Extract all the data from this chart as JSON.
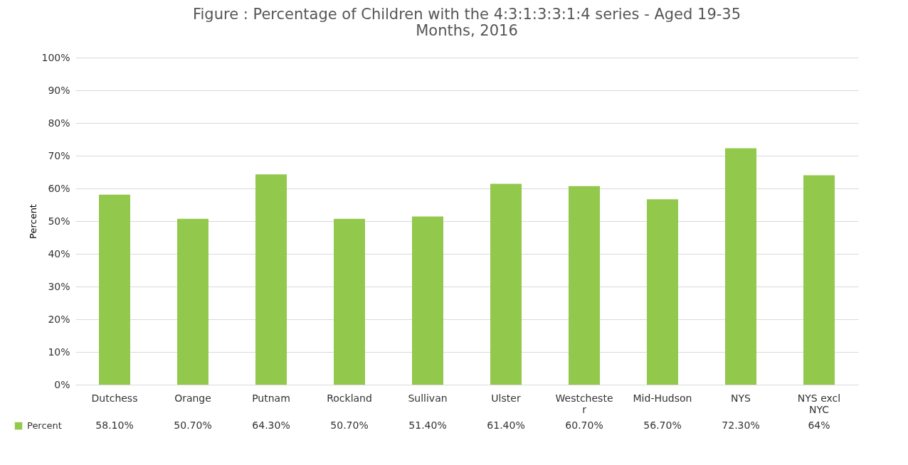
{
  "chart_data": {
    "type": "bar",
    "title": "Figure : Percentage of Children with the 4:3:1:3:3:1:4 series - Aged 19-35 Months, 2016",
    "ylabel": "Percent",
    "categories": [
      "Dutchess",
      "Orange",
      "Putnam",
      "Rockland",
      "Sullivan",
      "Ulster",
      "Westchester",
      "Mid-Hudson",
      "NYS",
      "NYS excl NYC"
    ],
    "series": [
      {
        "name": "Percent",
        "color": "#92c84c",
        "values": [
          58.1,
          50.7,
          64.3,
          50.7,
          51.4,
          61.4,
          60.7,
          56.7,
          72.3,
          64
        ],
        "value_labels": [
          "58.10%",
          "50.70%",
          "64.30%",
          "50.70%",
          "51.40%",
          "61.40%",
          "60.70%",
          "56.70%",
          "72.30%",
          "64%"
        ]
      }
    ],
    "ylim": [
      0,
      100
    ],
    "yticks": [
      {
        "value": 0,
        "label": "0%"
      },
      {
        "value": 10,
        "label": "10%"
      },
      {
        "value": 20,
        "label": "20%"
      },
      {
        "value": 30,
        "label": "30%"
      },
      {
        "value": 40,
        "label": "40%"
      },
      {
        "value": 50,
        "label": "50%"
      },
      {
        "value": 60,
        "label": "60%"
      },
      {
        "value": 70,
        "label": "70%"
      },
      {
        "value": 80,
        "label": "80%"
      },
      {
        "value": 90,
        "label": "90%"
      },
      {
        "value": 100,
        "label": "100%"
      }
    ],
    "grid": "y",
    "legend": "bottom"
  }
}
